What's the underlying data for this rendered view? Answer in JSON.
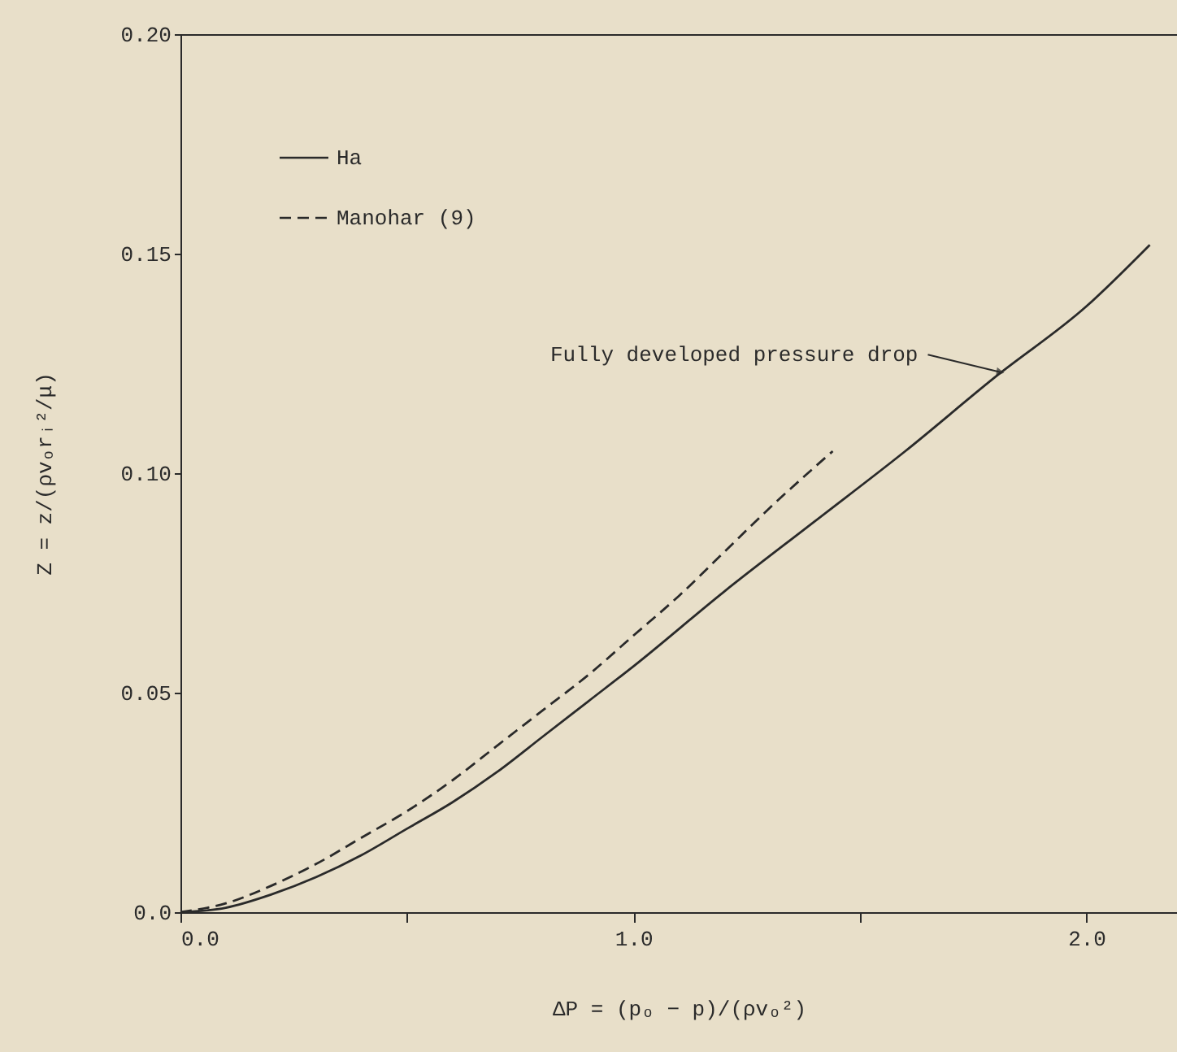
{
  "chart_data": {
    "type": "line",
    "xlabel": "ΔP = (pₒ − p)/(ρvₒ²)",
    "ylabel": "Z = z/(ρvₒrᵢ²/μ)",
    "xlim": [
      0,
      2.2
    ],
    "xticks": [
      {
        "value": 0,
        "label": "0.0"
      },
      {
        "value": 0.5,
        "label": null
      },
      {
        "value": 1,
        "label": "1.0"
      },
      {
        "value": 1.5,
        "label": null
      },
      {
        "value": 2,
        "label": "2.0"
      }
    ],
    "ylim": [
      0,
      0.2
    ],
    "yticks": [
      {
        "value": 0,
        "label": "0.0"
      },
      {
        "value": 0.05,
        "label": "0.05"
      },
      {
        "value": 0.1,
        "label": "0.10"
      },
      {
        "value": 0.15,
        "label": "0.15"
      },
      {
        "value": 0.2,
        "label": "0.20"
      }
    ],
    "series": [
      {
        "name": "Ha",
        "color": "#2a2a2a",
        "line_style": "solid",
        "x": [
          0,
          0.1,
          0.2,
          0.3,
          0.4,
          0.5,
          0.6,
          0.7,
          0.8,
          0.9,
          1.0,
          1.2,
          1.4,
          1.6,
          1.8,
          2.0,
          2.14
        ],
        "values": [
          0,
          0.001,
          0.004,
          0.008,
          0.013,
          0.019,
          0.025,
          0.032,
          0.04,
          0.048,
          0.056,
          0.073,
          0.089,
          0.105,
          0.122,
          0.138,
          0.152
        ]
      },
      {
        "name": "Manohar (9)",
        "color": "#2a2a2a",
        "line_style": "dashed",
        "x": [
          0,
          0.1,
          0.2,
          0.3,
          0.4,
          0.5,
          0.6,
          0.7,
          0.8,
          0.9,
          1.0,
          1.1,
          1.2,
          1.3,
          1.44
        ],
        "values": [
          0,
          0.002,
          0.006,
          0.011,
          0.017,
          0.023,
          0.03,
          0.038,
          0.046,
          0.054,
          0.063,
          0.072,
          0.082,
          0.092,
          0.105
        ]
      }
    ],
    "annotations": [
      {
        "text": "Fully developed pressure drop",
        "x": 1.81,
        "y": 0.123
      }
    ],
    "legend": "top left",
    "grid": false
  }
}
